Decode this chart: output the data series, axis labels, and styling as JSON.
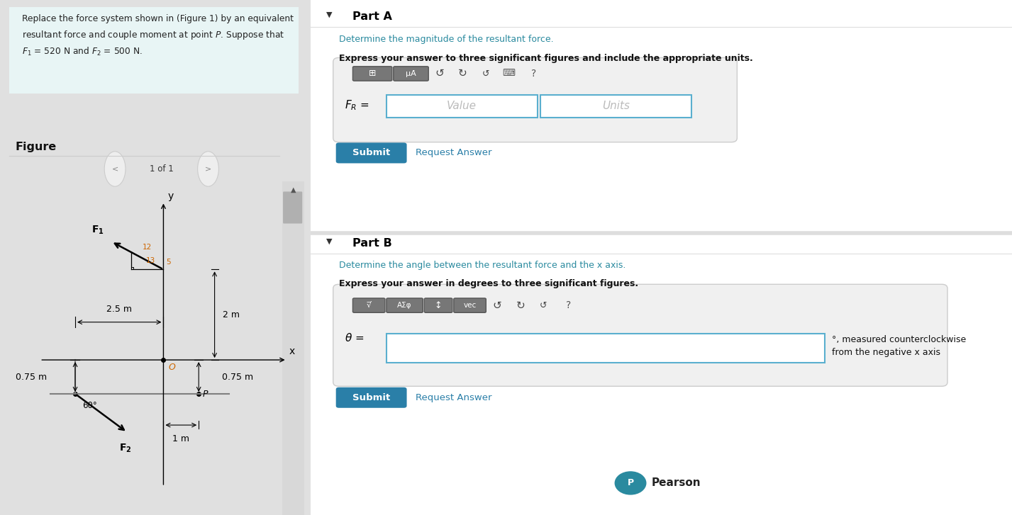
{
  "teal_color": "#2a8a9f",
  "submit_bg": "#2a7fa8",
  "input_border": "#5aafcf",
  "dark_text": "#222222",
  "orange_text": "#cc6600",
  "link_color": "#2a7fa8",
  "gray_bg": "#f0f0f0",
  "white": "#ffffff",
  "light_teal_bg": "#e8f5f5",
  "toolbar_gray": "#777777",
  "border_gray": "#cccccc",
  "panel_div": 0.307,
  "part_a_title": "Part A",
  "part_a_teal": "Determine the magnitude of the resultant force.",
  "part_a_bold": "Express your answer to three significant figures and include the appropriate units.",
  "value_ph": "Value",
  "units_ph": "Units",
  "submit_text": "Submit",
  "req_ans": "Request Answer",
  "part_b_title": "Part B",
  "part_b_teal": "Determine the angle between the resultant force and the x axis.",
  "part_b_bold": "Express your answer in degrees to three significant figures.",
  "theta_note_1": "°, measured counterclockwise",
  "theta_note_2": "from the negative x axis",
  "pearson_text": "Pearson",
  "dim_25": "2.5 m",
  "dim_2": "2 m",
  "dim_075_l": "0.75 m",
  "dim_075_r": "0.75 m",
  "dim_1": "1 m",
  "angle_label": "60°",
  "tri_12": "12",
  "tri_5": "5",
  "tri_13": "13"
}
